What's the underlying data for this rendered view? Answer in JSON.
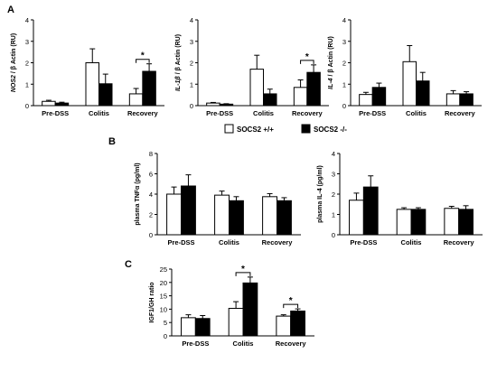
{
  "panel_letters": [
    "A",
    "B",
    "C"
  ],
  "legend": {
    "items": [
      {
        "label": "SOCS2 +/+",
        "color": "#ffffff"
      },
      {
        "label": "SOCS2 -/-",
        "color": "#000000"
      }
    ]
  },
  "chart_data": [
    {
      "id": "nos2",
      "type": "bar",
      "panel": "A",
      "categories": [
        "Pre-DSS",
        "Colitis",
        "Recovery"
      ],
      "ylabel_italic": "NOS2",
      "ylabel_suffix": " / β Actin (RU)",
      "ylim": [
        0,
        4
      ],
      "yticks": [
        "0",
        "1",
        "2",
        "3",
        "4"
      ],
      "series": [
        {
          "name": "SOCS2 +/+",
          "values": [
            0.2,
            2.0,
            0.55
          ],
          "errors": [
            0.05,
            0.65,
            0.25
          ]
        },
        {
          "name": "SOCS2 -/-",
          "values": [
            0.12,
            1.02,
            1.6
          ],
          "errors": [
            0.04,
            0.45,
            0.35
          ]
        }
      ],
      "significance": [
        {
          "category": 2,
          "label": "*"
        }
      ]
    },
    {
      "id": "il1b",
      "type": "bar",
      "panel": "A",
      "categories": [
        "Pre-DSS",
        "Colitis",
        "Recovery"
      ],
      "ylabel_italic": "IL-1β",
      "ylabel_suffix": " / β Actin (RU)",
      "ylim": [
        0,
        4
      ],
      "yticks": [
        "0",
        "1",
        "2",
        "3",
        "4"
      ],
      "series": [
        {
          "name": "SOCS2 +/+",
          "values": [
            0.12,
            1.7,
            0.85
          ],
          "errors": [
            0.03,
            0.65,
            0.35
          ]
        },
        {
          "name": "SOCS2 -/-",
          "values": [
            0.07,
            0.55,
            1.55
          ],
          "errors": [
            0.02,
            0.22,
            0.35
          ]
        }
      ],
      "significance": [
        {
          "category": 2,
          "label": "*"
        }
      ]
    },
    {
      "id": "il4",
      "type": "bar",
      "panel": "A",
      "categories": [
        "Pre-DSS",
        "Colitis",
        "Recovery"
      ],
      "ylabel_italic": "IL-4",
      "ylabel_suffix": " / β Actin (RU)",
      "ylim": [
        0,
        4
      ],
      "yticks": [
        "0",
        "1",
        "2",
        "3",
        "4"
      ],
      "series": [
        {
          "name": "SOCS2 +/+",
          "values": [
            0.52,
            2.05,
            0.55
          ],
          "errors": [
            0.1,
            0.75,
            0.15
          ]
        },
        {
          "name": "SOCS2 -/-",
          "values": [
            0.85,
            1.15,
            0.55
          ],
          "errors": [
            0.2,
            0.4,
            0.1
          ]
        }
      ],
      "significance": []
    },
    {
      "id": "tnfa",
      "type": "bar",
      "panel": "B",
      "categories": [
        "Pre-DSS",
        "Colitis",
        "Recovery"
      ],
      "ylabel": "plasma TNFα (pg/ml)",
      "ylim": [
        0,
        8
      ],
      "yticks": [
        "0",
        "2",
        "4",
        "6",
        "8"
      ],
      "series": [
        {
          "name": "SOCS2 +/+",
          "values": [
            4.0,
            3.9,
            3.75
          ],
          "errors": [
            0.7,
            0.4,
            0.3
          ]
        },
        {
          "name": "SOCS2 -/-",
          "values": [
            4.8,
            3.35,
            3.35
          ],
          "errors": [
            1.1,
            0.4,
            0.3
          ]
        }
      ],
      "significance": []
    },
    {
      "id": "plasma_il4",
      "type": "bar",
      "panel": "B",
      "categories": [
        "Pre-DSS",
        "Colitis",
        "Recovery"
      ],
      "ylabel": "plasma IL-4 (pg/ml)",
      "ylim": [
        0,
        4
      ],
      "yticks": [
        "0",
        "1",
        "2",
        "3",
        "4"
      ],
      "series": [
        {
          "name": "SOCS2 +/+",
          "values": [
            1.7,
            1.25,
            1.3
          ],
          "errors": [
            0.35,
            0.08,
            0.1
          ]
        },
        {
          "name": "SOCS2 -/-",
          "values": [
            2.35,
            1.25,
            1.25
          ],
          "errors": [
            0.55,
            0.08,
            0.18
          ]
        }
      ],
      "significance": []
    },
    {
      "id": "igf1_gh",
      "type": "bar",
      "panel": "C",
      "categories": [
        "Pre-DSS",
        "Colitis",
        "Recovery"
      ],
      "ylabel": "IGF1/GH ratio",
      "ylim": [
        0,
        25
      ],
      "yticks": [
        "0",
        "5",
        "10",
        "15",
        "20",
        "25"
      ],
      "series": [
        {
          "name": "SOCS2 +/+",
          "values": [
            6.8,
            10.3,
            7.4
          ],
          "errors": [
            1.1,
            2.5,
            0.5
          ]
        },
        {
          "name": "SOCS2 -/-",
          "values": [
            6.5,
            19.8,
            9.3
          ],
          "errors": [
            1.1,
            2.2,
            0.8
          ]
        }
      ],
      "significance": [
        {
          "category": 1,
          "label": "*"
        },
        {
          "category": 2,
          "label": "*"
        }
      ]
    }
  ]
}
